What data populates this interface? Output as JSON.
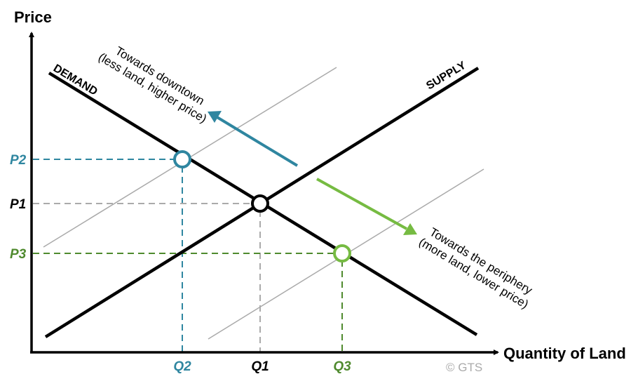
{
  "axes": {
    "y_label": "Price",
    "x_label": "Quantity of Land"
  },
  "curves": {
    "demand": "DEMAND",
    "supply": "SUPPLY"
  },
  "prices": {
    "p1": "P1",
    "p2": "P2",
    "p3": "P3"
  },
  "quantities": {
    "q1": "Q1",
    "q2": "Q2",
    "q3": "Q3"
  },
  "annotations": {
    "downtown_line1": "Towards downtown",
    "downtown_line2": "(less land, higher price)",
    "periphery_line1": "Towards the periphery",
    "periphery_line2": "(more land, lower price)"
  },
  "copyright": "© GTS",
  "colors": {
    "teal": "#2f86a0",
    "green_arrow": "#76bb42",
    "green_dark": "#4f8a2e",
    "gray": "#aaaaaa",
    "black": "#000000"
  }
}
